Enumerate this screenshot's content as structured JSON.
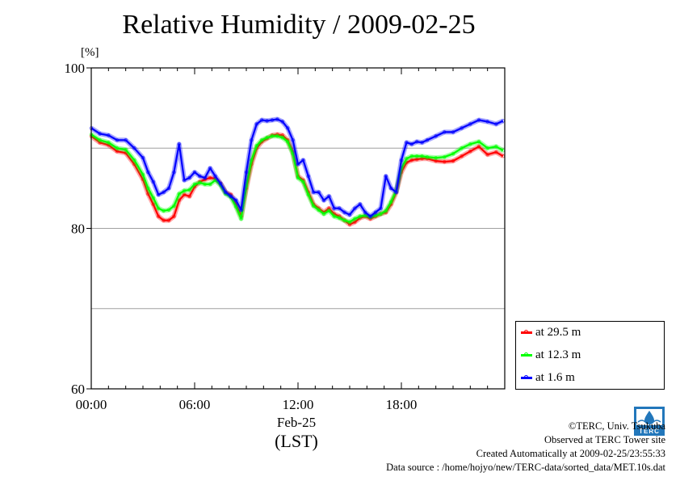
{
  "chart_data": {
    "type": "line",
    "title": "Relative Humidity / 2009-02-25",
    "ylabel_unit": "[%]",
    "xlabel_date": "Feb-25",
    "xlabel_tz": "(LST)",
    "ylim": [
      60,
      100
    ],
    "xlim": [
      0,
      24
    ],
    "yticks": [
      60,
      80,
      100
    ],
    "ygrid": [
      70,
      80,
      90
    ],
    "xticks": [
      {
        "value": 0,
        "label": "00:00"
      },
      {
        "value": 6,
        "label": "06:00"
      },
      {
        "value": 12,
        "label": "12:00"
      },
      {
        "value": 18,
        "label": "18:00"
      }
    ],
    "legend_position": "bottom-right",
    "series": [
      {
        "name": "at 29.5 m",
        "color": "#ff0000",
        "x": [
          0,
          0.5,
          1,
          1.5,
          2,
          2.5,
          3,
          3.3,
          3.6,
          3.9,
          4.2,
          4.5,
          4.8,
          5.1,
          5.4,
          5.7,
          6,
          6.3,
          6.6,
          6.9,
          7.2,
          7.5,
          7.8,
          8.1,
          8.4,
          8.7,
          9,
          9.3,
          9.6,
          9.9,
          10.2,
          10.5,
          10.8,
          11.1,
          11.4,
          11.7,
          12,
          12.3,
          12.6,
          12.9,
          13.2,
          13.5,
          13.8,
          14.1,
          14.4,
          14.7,
          15,
          15.3,
          15.6,
          15.9,
          16.2,
          16.5,
          16.8,
          17.1,
          17.4,
          17.7,
          18,
          18.3,
          18.6,
          18.9,
          19.2,
          19.5,
          20,
          20.5,
          21,
          21.5,
          22,
          22.5,
          23,
          23.5,
          23.9
        ],
        "values": [
          91.5,
          90.7,
          90.4,
          89.6,
          89.4,
          88.0,
          86.1,
          84.3,
          83.0,
          81.5,
          81.0,
          81.0,
          81.5,
          83.5,
          84.2,
          84.0,
          85.2,
          85.8,
          86.1,
          86.3,
          86.2,
          85.6,
          84.5,
          84.2,
          83.0,
          81.5,
          85.0,
          88.0,
          90.0,
          90.8,
          91.2,
          91.6,
          91.7,
          91.6,
          91.0,
          89.5,
          86.5,
          86.0,
          84.5,
          83.0,
          82.5,
          82.0,
          82.5,
          81.8,
          81.5,
          81.0,
          80.5,
          80.8,
          81.3,
          81.5,
          81.2,
          81.5,
          81.8,
          82.0,
          83.0,
          84.5,
          87.0,
          88.2,
          88.5,
          88.6,
          88.7,
          88.7,
          88.4,
          88.3,
          88.4,
          89.0,
          89.6,
          90.2,
          89.2,
          89.5,
          89.0
        ]
      },
      {
        "name": "at 12.3 m",
        "color": "#00ff00",
        "x": [
          0,
          0.5,
          1,
          1.5,
          2,
          2.5,
          3,
          3.3,
          3.6,
          3.9,
          4.2,
          4.5,
          4.8,
          5.1,
          5.4,
          5.7,
          6,
          6.3,
          6.6,
          6.9,
          7.2,
          7.5,
          7.8,
          8.1,
          8.4,
          8.7,
          9,
          9.3,
          9.6,
          9.9,
          10.2,
          10.5,
          10.8,
          11.1,
          11.4,
          11.7,
          12,
          12.3,
          12.6,
          12.9,
          13.2,
          13.5,
          13.8,
          14.1,
          14.4,
          14.7,
          15,
          15.3,
          15.6,
          15.9,
          16.2,
          16.5,
          16.8,
          17.1,
          17.4,
          17.7,
          18,
          18.3,
          18.6,
          18.9,
          19.2,
          19.5,
          20,
          20.5,
          21,
          21.5,
          22,
          22.5,
          23,
          23.5,
          23.9
        ],
        "values": [
          91.7,
          91.0,
          90.7,
          90.0,
          89.8,
          88.5,
          86.7,
          85.0,
          83.8,
          82.5,
          82.2,
          82.3,
          82.8,
          84.3,
          84.7,
          84.8,
          85.5,
          85.7,
          85.5,
          85.5,
          86.0,
          85.4,
          84.3,
          83.9,
          82.7,
          81.2,
          85.3,
          88.5,
          90.3,
          91.0,
          91.3,
          91.5,
          91.5,
          91.3,
          90.8,
          89.3,
          86.3,
          85.8,
          84.2,
          82.8,
          82.3,
          81.8,
          82.2,
          81.5,
          81.3,
          81.0,
          80.8,
          81.2,
          81.5,
          81.6,
          81.4,
          81.6,
          81.8,
          82.2,
          83.3,
          84.7,
          87.5,
          88.7,
          89.0,
          89.0,
          89.0,
          88.9,
          88.8,
          88.9,
          89.3,
          90.0,
          90.5,
          90.8,
          90.0,
          90.2,
          89.7
        ]
      },
      {
        "name": "at 1.6 m",
        "color": "#0000ff",
        "x": [
          0,
          0.5,
          1,
          1.5,
          2,
          2.5,
          3,
          3.3,
          3.6,
          3.9,
          4.2,
          4.5,
          4.8,
          5.1,
          5.4,
          5.7,
          6,
          6.3,
          6.6,
          6.9,
          7.2,
          7.5,
          7.8,
          8.1,
          8.4,
          8.7,
          9,
          9.3,
          9.6,
          9.9,
          10.2,
          10.5,
          10.8,
          11.1,
          11.4,
          11.7,
          12,
          12.3,
          12.6,
          12.9,
          13.2,
          13.5,
          13.8,
          14.1,
          14.4,
          14.7,
          15,
          15.3,
          15.6,
          15.9,
          16.2,
          16.5,
          16.8,
          17.1,
          17.4,
          17.7,
          18,
          18.3,
          18.6,
          18.9,
          19.2,
          19.5,
          20,
          20.5,
          21,
          21.5,
          22,
          22.5,
          23,
          23.5,
          23.9
        ],
        "values": [
          92.5,
          91.8,
          91.6,
          91.0,
          91.0,
          90.0,
          88.8,
          87.0,
          85.8,
          84.2,
          84.5,
          85.0,
          87.0,
          90.5,
          86.0,
          86.3,
          87.0,
          86.5,
          86.3,
          87.5,
          86.5,
          85.6,
          84.5,
          84.0,
          83.5,
          82.3,
          87.0,
          91.0,
          93.0,
          93.5,
          93.4,
          93.5,
          93.6,
          93.3,
          92.5,
          91.0,
          88.0,
          88.5,
          86.5,
          84.5,
          84.5,
          83.5,
          84.0,
          82.5,
          82.5,
          82.0,
          81.7,
          82.5,
          83.0,
          82.0,
          81.5,
          82.0,
          82.5,
          86.5,
          85.0,
          84.5,
          88.5,
          90.7,
          90.5,
          90.8,
          90.7,
          91.0,
          91.5,
          92.0,
          92.0,
          92.5,
          93.0,
          93.5,
          93.3,
          93.0,
          93.4
        ]
      }
    ]
  },
  "credits": {
    "line1": "©TERC, Univ. Tsukuba",
    "line2": "Observed at TERC Tower site",
    "line3": "Created Automatically at 2009-02-25/23:55:33",
    "line4": "Data source : /home/hojyo/new/TERC-data/sorted_data/MET.10s.dat"
  },
  "logo": {
    "text": "TERC",
    "color": "#2277bb"
  }
}
